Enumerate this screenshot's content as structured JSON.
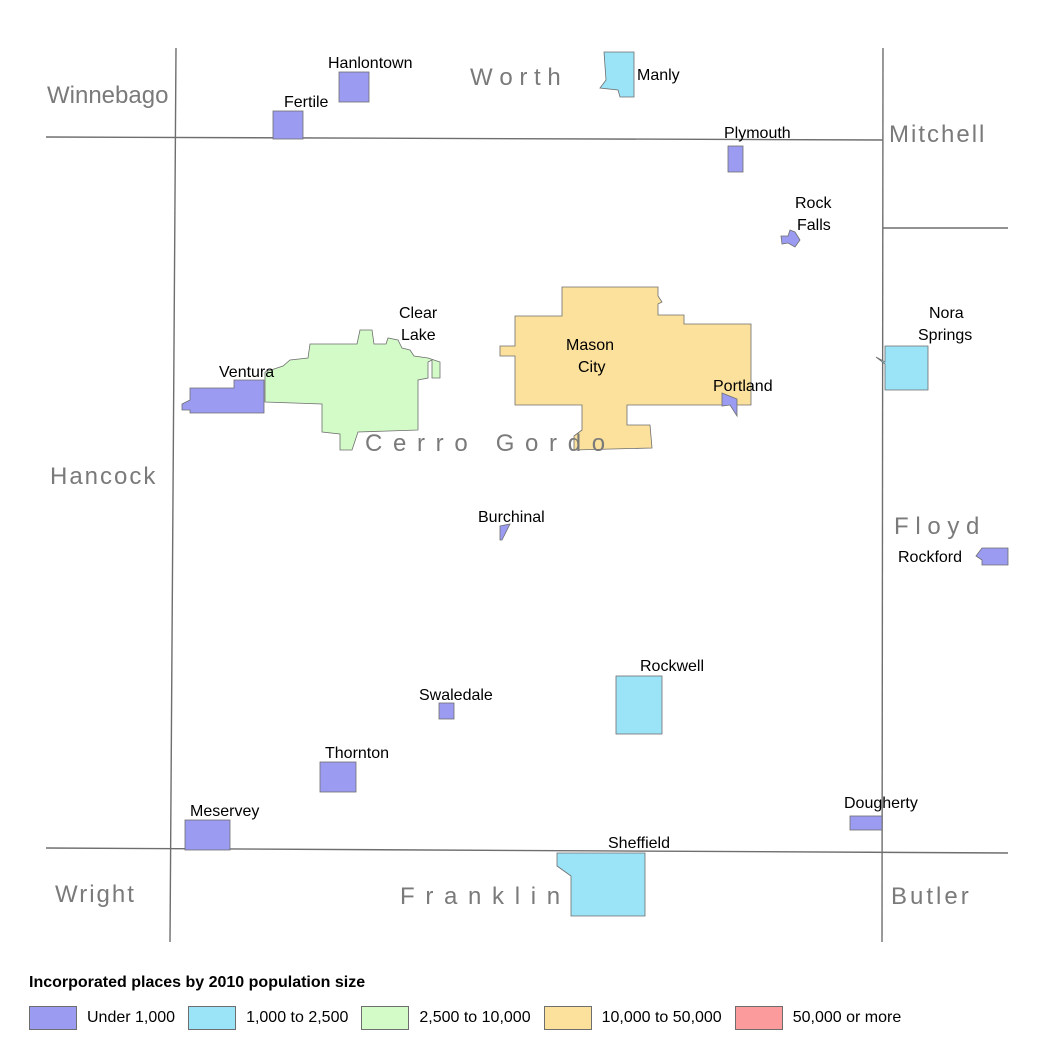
{
  "map": {
    "counties": {
      "winnebago": "Winnebago",
      "worth": "W o r t h",
      "mitchell": "Mitchell",
      "hancock": "Hancock",
      "cerro_gordo": "C e r r o   G o r d o",
      "floyd": "F l o y d",
      "wright": "Wright",
      "franklin": "F r a n k l i n",
      "butler": "Butler"
    },
    "places": {
      "hanlontown": "Hanlontown",
      "fertile": "Fertile",
      "manly": "Manly",
      "plymouth": "Plymouth",
      "rock_falls": [
        "Rock",
        "Falls"
      ],
      "clear_lake": [
        "Clear",
        "Lake"
      ],
      "mason_city": [
        "Mason",
        "City"
      ],
      "nora_springs": [
        "Nora",
        "Springs"
      ],
      "ventura": "Ventura",
      "portland": "Portland",
      "burchinal": "Burchinal",
      "rockford": "Rockford",
      "rockwell": "Rockwell",
      "swaledale": "Swaledale",
      "thornton": "Thornton",
      "meservey": "Meservey",
      "dougherty": "Dougherty",
      "sheffield": "Sheffield"
    },
    "place_sizes": {
      "hanlontown": "under_1000",
      "fertile": "under_1000",
      "manly": "1000_2500",
      "plymouth": "under_1000",
      "rock_falls": "under_1000",
      "clear_lake": "2500_10000",
      "mason_city": "10000_50000",
      "nora_springs": "1000_2500",
      "ventura": "under_1000",
      "portland": "under_1000",
      "burchinal": "under_1000",
      "rockford": "under_1000",
      "rockwell": "1000_2500",
      "swaledale": "under_1000",
      "thornton": "under_1000",
      "meservey": "under_1000",
      "dougherty": "under_1000",
      "sheffield": "1000_2500"
    }
  },
  "legend": {
    "title": "Incorporated places by 2010 population size",
    "items": [
      {
        "key": "under_1000",
        "label": "Under 1,000",
        "color": "#9b9bf2"
      },
      {
        "key": "1000_2500",
        "label": "1,000 to 2,500",
        "color": "#9be3f7"
      },
      {
        "key": "2500_10000",
        "label": "2,500 to 10,000",
        "color": "#d3fbc8"
      },
      {
        "key": "10000_50000",
        "label": "10,000 to 50,000",
        "color": "#fbe19c"
      },
      {
        "key": "50000_more",
        "label": "50,000 or more",
        "color": "#fb9b9b"
      }
    ]
  }
}
